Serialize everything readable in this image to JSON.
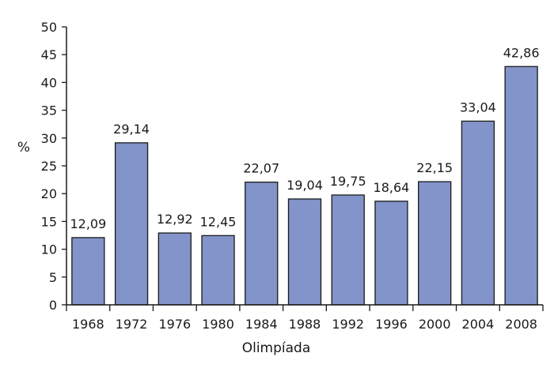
{
  "chart_data": {
    "type": "bar",
    "title": "",
    "xlabel": "Olimpíada",
    "ylabel": "%",
    "ylim": [
      0,
      50
    ],
    "yticks": [
      0,
      5,
      10,
      15,
      20,
      25,
      30,
      35,
      40,
      45,
      50
    ],
    "grid": false,
    "legend": "none",
    "bar_color": "#8294c9",
    "categories": [
      "1968",
      "1972",
      "1976",
      "1980",
      "1984",
      "1988",
      "1992",
      "1996",
      "2000",
      "2004",
      "2008"
    ],
    "values": [
      12.09,
      29.14,
      12.92,
      12.45,
      22.07,
      19.04,
      19.75,
      18.64,
      22.15,
      33.04,
      42.86
    ],
    "data_labels": [
      "12,09",
      "29,14",
      "12,92",
      "12,45",
      "22,07",
      "19,04",
      "19,75",
      "18,64",
      "22,15",
      "33,04",
      "42,86"
    ]
  }
}
